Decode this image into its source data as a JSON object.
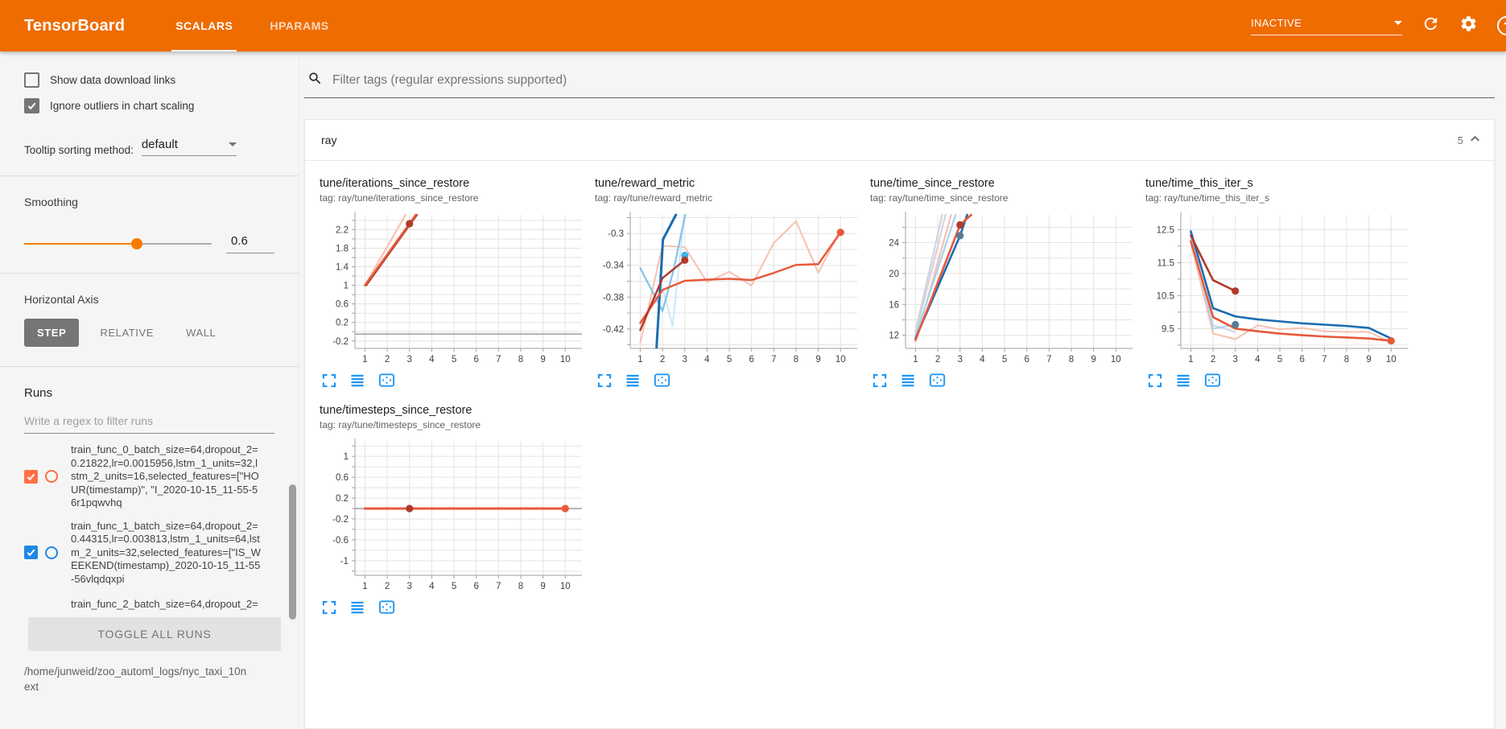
{
  "colors": {
    "header_orange": "#ef6c00",
    "accent_blue": "#2196f3",
    "run_orange": "#ff7043",
    "run_blue": "#1e88e5",
    "line_orange": "#e8593b",
    "line_dark_red": "#b03a2a",
    "line_blue": "#1a6cb0"
  },
  "header": {
    "title": "TensorBoard",
    "tabs": [
      {
        "label": "SCALARS",
        "active": true
      },
      {
        "label": "HPARAMS",
        "active": false
      }
    ],
    "status": "INACTIVE",
    "icons": [
      "chevron-down-icon",
      "refresh-icon",
      "gear-icon",
      "help-icon"
    ]
  },
  "sidebar": {
    "checkboxes": [
      {
        "label": "Show data download links",
        "checked": false
      },
      {
        "label": "Ignore outliers in chart scaling",
        "checked": true
      }
    ],
    "tooltip_sort": {
      "label": "Tooltip sorting method:",
      "value": "default"
    },
    "smoothing": {
      "label": "Smoothing",
      "value": "0.6"
    },
    "horizontal_axis": {
      "label": "Horizontal Axis",
      "options": [
        {
          "label": "STEP",
          "active": true
        },
        {
          "label": "RELATIVE",
          "active": false
        },
        {
          "label": "WALL",
          "active": false
        }
      ]
    },
    "runs": {
      "label": "Runs",
      "filter_placeholder": "Write a regex to filter runs",
      "items": [
        {
          "name": "train_func_0_batch_size=64,dropout_2=0.21822,lr=0.0015956,lstm_1_units=32,lstm_2_units=16,selected_features=[\"HOUR(timestamp)\", \"I_2020-10-15_11-55-56r1pqwvhq",
          "checked": true,
          "color": "#ff7043"
        },
        {
          "name": "train_func_1_batch_size=64,dropout_2=0.44315,lr=0.003813,lstm_1_units=64,lstm_2_units=32,selected_features=[\"IS_WEEKEND(timestamp)_2020-10-15_11-55-56vlqdqxpi",
          "checked": true,
          "color": "#1e88e5"
        },
        {
          "name": "train_func_2_batch_size=64,dropout_2=",
          "checked": true,
          "color": "#757575"
        }
      ],
      "toggle_button": "TOGGLE ALL RUNS",
      "log_path": "/home/junweid/zoo_automl_logs/nyc_taxi_10next"
    }
  },
  "main": {
    "filter_placeholder": "Filter tags (regular expressions supported)",
    "section": {
      "title": "ray",
      "count": "5"
    },
    "chart_footer_icons": [
      "expand-icon",
      "flush-left-icon",
      "fit-domain-icon"
    ]
  },
  "chart_data": [
    {
      "type": "line",
      "title": "tune/iterations_since_restore",
      "tag_label": "tag: ray/tune/iterations_since_restore",
      "xlim": [
        0.55,
        10.75
      ],
      "xticks": [
        1,
        2,
        3,
        4,
        5,
        6,
        7,
        8,
        9,
        10
      ],
      "ylim": [
        -0.36,
        2.52
      ],
      "yticks": [
        -0.2,
        0.2,
        0.6,
        1,
        1.4,
        1.8,
        2.2
      ],
      "ygrid": 0.2,
      "series": [
        {
          "name": "baseline-zero",
          "color": "#9e9e9e",
          "width": 1.4,
          "points": [
            [
              0.55,
              -0.05
            ],
            [
              10.75,
              -0.05
            ]
          ]
        },
        {
          "name": "run0-raw",
          "color": "#f7c6b6",
          "width": 2.4,
          "points": [
            [
              1,
              1
            ],
            [
              2.82,
              2.52
            ]
          ]
        },
        {
          "name": "run-dark-under",
          "color": "#9d3b22",
          "width": 2,
          "points": [
            [
              1.06,
              1
            ],
            [
              3.1,
              2.36
            ],
            [
              3.34,
              2.52
            ]
          ]
        },
        {
          "name": "run0-smoothed",
          "color": "#e8593b",
          "width": 2.6,
          "points": [
            [
              1,
              1
            ],
            [
              3,
              2.33
            ],
            [
              3.28,
              2.52
            ]
          ]
        }
      ],
      "end_dots": [
        {
          "x": 3,
          "y": 2.33,
          "color": "#b03a2a"
        }
      ]
    },
    {
      "type": "line",
      "title": "tune/reward_metric",
      "tag_label": "tag: ray/tune/reward_metric",
      "xlim": [
        0.55,
        10.75
      ],
      "xticks": [
        1,
        2,
        3,
        4,
        5,
        6,
        7,
        8,
        9,
        10
      ],
      "ylim": [
        -0.4445,
        -0.2765
      ],
      "yticks": [
        -0.42,
        -0.38,
        -0.34,
        -0.3
      ],
      "ygrid": 0.02,
      "series": [
        {
          "name": "run0-raw",
          "color": "#f7c0ae",
          "width": 2,
          "points": [
            [
              1,
              -0.4375
            ],
            [
              2,
              -0.3155
            ],
            [
              3,
              -0.317
            ],
            [
              4,
              -0.361
            ],
            [
              5,
              -0.348
            ],
            [
              6,
              -0.3655
            ],
            [
              7,
              -0.312
            ],
            [
              8,
              -0.2845
            ],
            [
              9,
              -0.3495
            ],
            [
              10,
              -0.2955
            ]
          ]
        },
        {
          "name": "run1-raw-light",
          "color": "#cfe7f7",
          "width": 2,
          "points": [
            [
              1.85,
              -0.352
            ],
            [
              2.45,
              -0.4165
            ],
            [
              2.98,
              -0.2765
            ]
          ]
        },
        {
          "name": "run1-raw",
          "color": "#82c3ea",
          "width": 2.2,
          "points": [
            [
              1,
              -0.3435
            ],
            [
              2,
              -0.3975
            ],
            [
              2.5,
              -0.3455
            ],
            [
              3.02,
              -0.2765
            ]
          ]
        },
        {
          "name": "run1-smoothed",
          "color": "#1a6cb0",
          "width": 3,
          "points": [
            [
              1.73,
              -0.4445
            ],
            [
              2.02,
              -0.3075
            ],
            [
              2.6,
              -0.2765
            ]
          ]
        },
        {
          "name": "run0-smoothed",
          "color": "#e8593b",
          "width": 2.5,
          "points": [
            [
              1,
              -0.4125
            ],
            [
              2,
              -0.371
            ],
            [
              3,
              -0.3595
            ],
            [
              4,
              -0.358
            ],
            [
              5,
              -0.357
            ],
            [
              6,
              -0.3585
            ],
            [
              7,
              -0.3495
            ],
            [
              8,
              -0.3395
            ],
            [
              9,
              -0.3385
            ],
            [
              10,
              -0.2985
            ]
          ]
        },
        {
          "name": "run2-smoothed",
          "color": "#b03a2a",
          "width": 2.5,
          "points": [
            [
              1,
              -0.4215
            ],
            [
              2,
              -0.356
            ],
            [
              3,
              -0.3335
            ]
          ]
        }
      ],
      "end_dots": [
        {
          "x": 3,
          "y": -0.3275,
          "color": "#3bb3ea"
        },
        {
          "x": 3,
          "y": -0.3335,
          "color": "#b03a2a"
        },
        {
          "x": 10,
          "y": -0.2985,
          "color": "#e8593b"
        }
      ]
    },
    {
      "type": "line",
      "title": "tune/time_since_restore",
      "tag_label": "tag: ray/tune/time_since_restore",
      "xlim": [
        0.55,
        10.75
      ],
      "xticks": [
        1,
        2,
        3,
        4,
        5,
        6,
        7,
        8,
        9,
        10
      ],
      "ylim": [
        10.3,
        27.6
      ],
      "yticks": [
        12,
        16,
        20,
        24
      ],
      "ygrid": 2,
      "series": [
        {
          "name": "run-faint-lavender",
          "color": "#d6d2e4",
          "width": 2.2,
          "points": [
            [
              1,
              12.1
            ],
            [
              2.35,
              27.6
            ]
          ]
        },
        {
          "name": "run-faint-gray",
          "color": "#d2d2d8",
          "width": 2.2,
          "points": [
            [
              1,
              12.5
            ],
            [
              2.2,
              27.6
            ]
          ]
        },
        {
          "name": "run0-raw",
          "color": "#f7c0ae",
          "width": 2.2,
          "points": [
            [
              1,
              11.2
            ],
            [
              2.6,
              27.6
            ]
          ]
        },
        {
          "name": "run1-raw",
          "color": "#a8d4ef",
          "width": 2.2,
          "points": [
            [
              1,
              11.9
            ],
            [
              2.8,
              27.6
            ]
          ]
        },
        {
          "name": "run1-smoothed",
          "color": "#1a6cb0",
          "width": 2.6,
          "points": [
            [
              1,
              11.6
            ],
            [
              3,
              24.9
            ],
            [
              3.32,
              27.6
            ]
          ]
        },
        {
          "name": "run0-smoothed",
          "color": "#e8593b",
          "width": 2.6,
          "points": [
            [
              1,
              11.4
            ],
            [
              3,
              26.3
            ],
            [
              3.5,
              27.6
            ]
          ]
        }
      ],
      "end_dots": [
        {
          "x": 3,
          "y": 26.3,
          "color": "#b03a2a"
        },
        {
          "x": 3,
          "y": 24.9,
          "color": "#567d96"
        }
      ]
    },
    {
      "type": "line",
      "title": "tune/time_this_iter_s",
      "tag_label": "tag: ray/tune/time_this_iter_s",
      "xlim": [
        0.55,
        10.75
      ],
      "xticks": [
        1,
        2,
        3,
        4,
        5,
        6,
        7,
        8,
        9,
        10
      ],
      "ylim": [
        8.9,
        12.95
      ],
      "yticks": [
        9.5,
        10.5,
        11.5,
        12.5
      ],
      "ygrid": 0.5,
      "series": [
        {
          "name": "run0-raw",
          "color": "#f7c0ae",
          "width": 2,
          "points": [
            [
              1,
              12.1
            ],
            [
              2,
              9.35
            ],
            [
              3,
              9.18
            ],
            [
              4,
              9.6
            ],
            [
              5,
              9.48
            ],
            [
              6,
              9.52
            ],
            [
              7,
              9.42
            ],
            [
              8,
              9.4
            ],
            [
              9,
              9.4
            ],
            [
              10,
              9.08
            ]
          ]
        },
        {
          "name": "run-faint-lavender",
          "color": "#d6d2e4",
          "width": 2,
          "points": [
            [
              1,
              12.25
            ],
            [
              2,
              9.6
            ],
            [
              3,
              9.4
            ]
          ]
        },
        {
          "name": "run1-raw",
          "color": "#a8d4ef",
          "width": 2,
          "points": [
            [
              1,
              12.4
            ],
            [
              2,
              9.5
            ],
            [
              3,
              9.62
            ]
          ]
        },
        {
          "name": "run1-smoothed",
          "color": "#1a6cb0",
          "width": 2.6,
          "points": [
            [
              1,
              12.45
            ],
            [
              2,
              10.12
            ],
            [
              3,
              9.87
            ],
            [
              4,
              9.78
            ],
            [
              5,
              9.72
            ],
            [
              6,
              9.66
            ],
            [
              7,
              9.62
            ],
            [
              8,
              9.58
            ],
            [
              9,
              9.52
            ],
            [
              10,
              9.2
            ]
          ]
        },
        {
          "name": "run2-smoothed",
          "color": "#b03a2a",
          "width": 2.6,
          "points": [
            [
              1,
              12.32
            ],
            [
              2,
              10.97
            ],
            [
              3,
              10.64
            ]
          ]
        },
        {
          "name": "run0-smoothed",
          "color": "#e8593b",
          "width": 2.6,
          "points": [
            [
              1,
              12.15
            ],
            [
              2,
              9.85
            ],
            [
              3,
              9.5
            ],
            [
              4,
              9.42
            ],
            [
              5,
              9.35
            ],
            [
              6,
              9.3
            ],
            [
              7,
              9.26
            ],
            [
              8,
              9.23
            ],
            [
              9,
              9.2
            ],
            [
              10,
              9.13
            ]
          ]
        }
      ],
      "end_dots": [
        {
          "x": 3,
          "y": 10.64,
          "color": "#b03a2a"
        },
        {
          "x": 3,
          "y": 9.62,
          "color": "#567d96"
        },
        {
          "x": 10,
          "y": 9.13,
          "color": "#e8593b"
        }
      ]
    },
    {
      "type": "line",
      "title": "tune/timesteps_since_restore",
      "tag_label": "tag: ray/tune/timesteps_since_restore",
      "xlim": [
        0.55,
        10.75
      ],
      "xticks": [
        1,
        2,
        3,
        4,
        5,
        6,
        7,
        8,
        9,
        10
      ],
      "ylim": [
        -1.28,
        1.28
      ],
      "yticks": [
        -1,
        -0.6,
        -0.2,
        0.2,
        0.6,
        1
      ],
      "ygrid": 0.2,
      "series": [
        {
          "name": "baseline-zero",
          "color": "#9e9e9e",
          "width": 1.4,
          "points": [
            [
              0.55,
              0
            ],
            [
              10.75,
              0
            ]
          ]
        },
        {
          "name": "run0-smoothed",
          "color": "#e8593b",
          "width": 3,
          "points": [
            [
              1,
              0
            ],
            [
              10,
              0
            ]
          ]
        }
      ],
      "end_dots": [
        {
          "x": 3,
          "y": 0,
          "color": "#b03a2a"
        },
        {
          "x": 10,
          "y": 0,
          "color": "#e8593b"
        }
      ]
    }
  ]
}
